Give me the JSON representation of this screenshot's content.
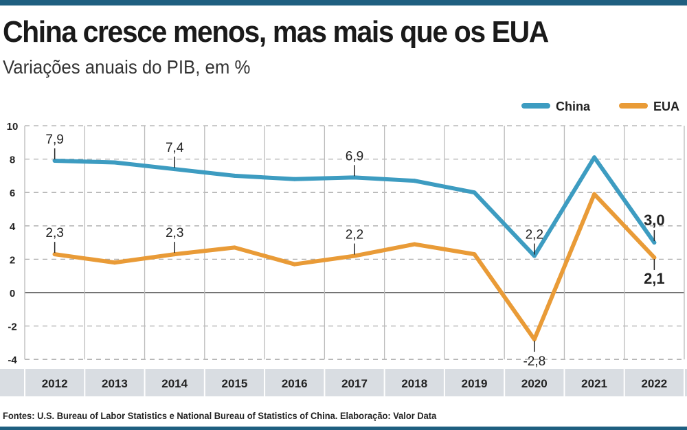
{
  "title": "China cresce menos, mas mais que os EUA",
  "subtitle": "Variações anuais do PIB, em %",
  "source": "Fontes: U.S. Bureau of Labor Statistics e National Bureau of Statistics of China. Elaboração: Valor Data",
  "chart_data": {
    "type": "line",
    "categories": [
      "2012",
      "2013",
      "2014",
      "2015",
      "2016",
      "2017",
      "2018",
      "2019",
      "2020",
      "2021",
      "2022"
    ],
    "ylim": [
      -4,
      10
    ],
    "yticks": [
      10,
      8,
      6,
      4,
      2,
      0,
      -2,
      -4
    ],
    "grid": true,
    "legend_position": "top-right",
    "series": [
      {
        "name": "China",
        "color": "#3d9cc1",
        "values": [
          7.9,
          7.8,
          7.4,
          7.0,
          6.8,
          6.9,
          6.7,
          6.0,
          2.2,
          8.1,
          3.0
        ],
        "labels": {
          "0": "7,9",
          "2": "7,4",
          "5": "6,9",
          "8": "2,2",
          "10": "3,0"
        }
      },
      {
        "name": "EUA",
        "color": "#e99b37",
        "values": [
          2.3,
          1.8,
          2.3,
          2.7,
          1.7,
          2.2,
          2.9,
          2.3,
          -2.8,
          5.9,
          2.1
        ],
        "labels": {
          "0": "2,3",
          "2": "2,3",
          "5": "2,2",
          "8": "-2,8",
          "10": "2,1"
        }
      }
    ]
  }
}
